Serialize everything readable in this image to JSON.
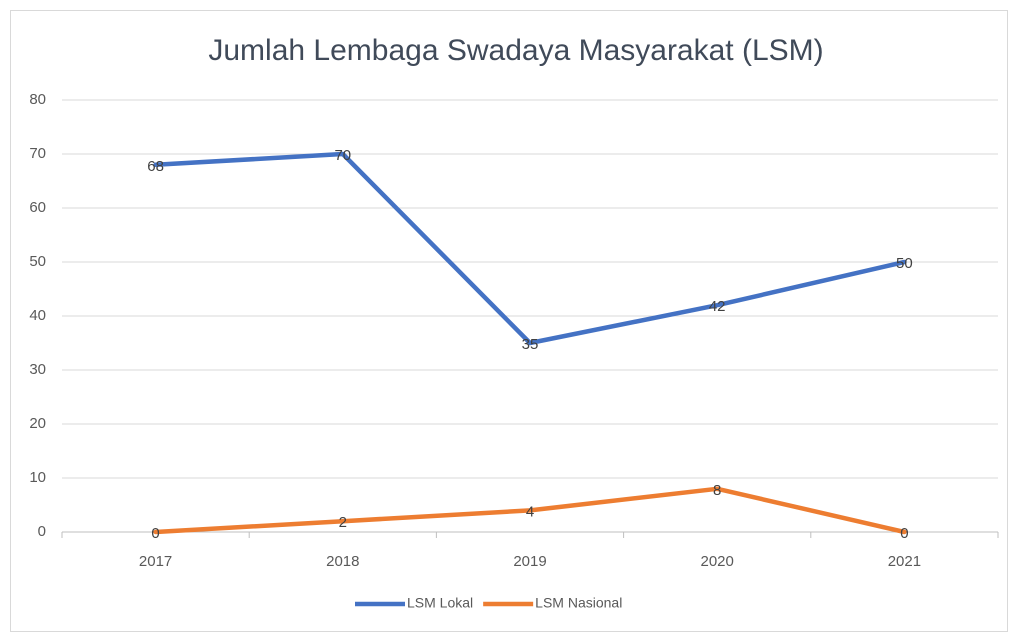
{
  "chart_data": {
    "type": "line",
    "title": "Jumlah Lembaga Swadaya Masyarakat (LSM)",
    "categories": [
      "2017",
      "2018",
      "2019",
      "2020",
      "2021"
    ],
    "series": [
      {
        "name": "LSM Lokal",
        "color": "#4472c4",
        "values": [
          68,
          70,
          35,
          42,
          50
        ]
      },
      {
        "name": "LSM Nasional",
        "color": "#ed7d31",
        "values": [
          0,
          2,
          4,
          8,
          0
        ]
      }
    ],
    "ylim": [
      0,
      80
    ],
    "yticks": [
      0,
      10,
      20,
      30,
      40,
      50,
      60,
      70,
      80
    ],
    "grid": true,
    "legend": "bottom",
    "data_labels": true
  }
}
